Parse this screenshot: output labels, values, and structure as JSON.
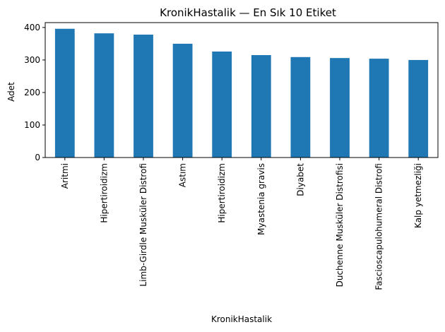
{
  "chart_data": {
    "type": "bar",
    "title": "KronikHastalik — En Sık 10 Etiket",
    "xlabel": "KronikHastalik",
    "ylabel": "Adet",
    "categories": [
      "Aritmi",
      "Hipertiroidizm",
      "Limb-Girdle Musküler Distrofi",
      "Astım",
      "Hipertiroidizm",
      "Myastenia gravis",
      "Diyabet",
      "Duchenne Musküler Distrofisi",
      "Fascioscapulohumeral Distrofi",
      "Kalp yetmezliği"
    ],
    "values": [
      396,
      382,
      378,
      350,
      326,
      315,
      309,
      306,
      304,
      300
    ],
    "ylim": [
      0,
      415
    ],
    "yticks": [
      0,
      100,
      200,
      300,
      400
    ],
    "bar_color": "#1f77b4",
    "grid": false,
    "legend": "none"
  }
}
